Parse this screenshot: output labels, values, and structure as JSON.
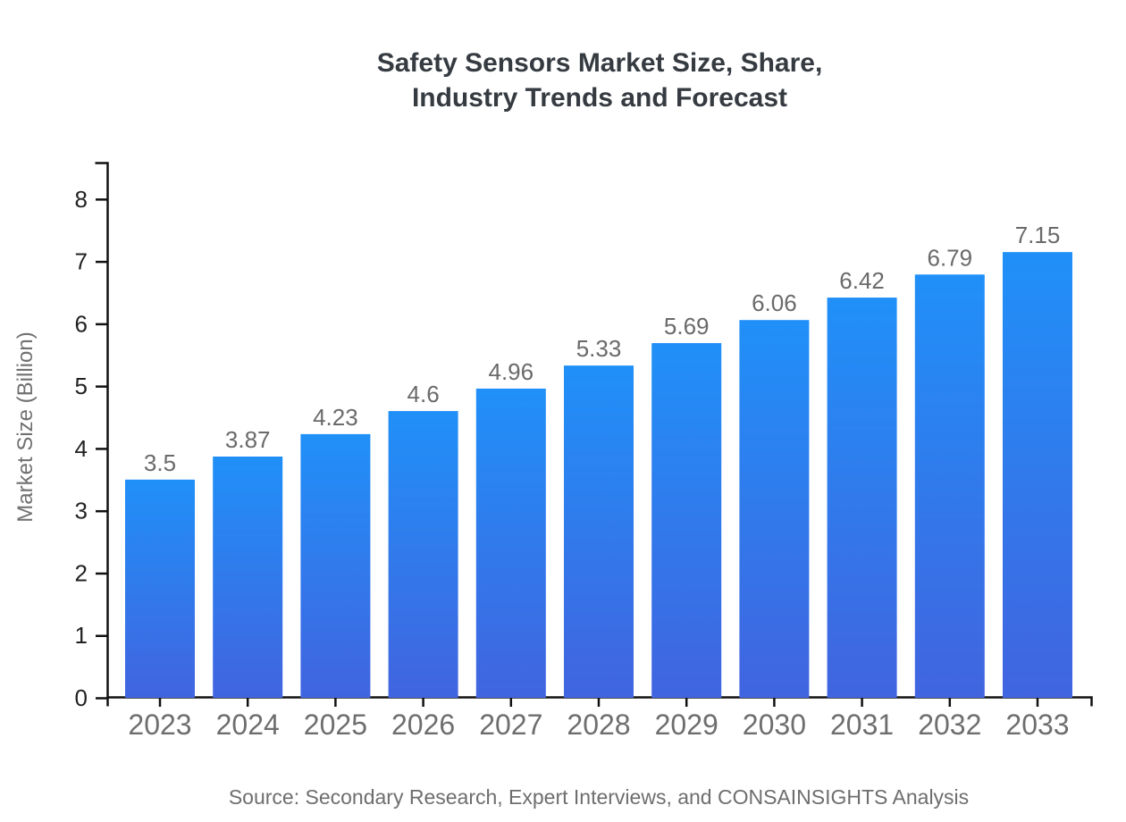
{
  "header": {
    "title_lines": [
      "Safety Sensors Market Size, Share,",
      "Industry Trends and Forecast"
    ]
  },
  "footer": {
    "source": "Source: Secondary Research, Expert Interviews, and CONSAINSIGHTS Analysis"
  },
  "chart_data": {
    "type": "bar",
    "title": "Safety Sensors Market Size, Share, Industry Trends and Forecast",
    "categories": [
      "2023",
      "2024",
      "2025",
      "2026",
      "2027",
      "2028",
      "2029",
      "2030",
      "2031",
      "2032",
      "2033"
    ],
    "values": [
      3.5,
      3.87,
      4.23,
      4.6,
      4.96,
      5.33,
      5.69,
      6.06,
      6.42,
      6.79,
      7.15
    ],
    "value_labels": [
      "3.5",
      "3.87",
      "4.23",
      "4.6",
      "4.96",
      "5.33",
      "5.69",
      "6.06",
      "6.42",
      "6.79",
      "7.15"
    ],
    "xlabel": "",
    "ylabel": "Market Size (Billion)",
    "ylim": [
      0,
      8.6
    ],
    "yticks": [
      0,
      1,
      2,
      3,
      4,
      5,
      6,
      7,
      8
    ],
    "grid": false,
    "legend": "none",
    "bar_gradient_top": "#2090F8",
    "bar_gradient_bottom": "#4164E0",
    "source_note": "Source: Secondary Research, Expert Interviews, and CONSAINSIGHTS Analysis"
  },
  "colors": {
    "title": "#353B41",
    "axis": "#111111",
    "y_tick_label": "#222222",
    "x_tick_label": "#6E6E6E",
    "value_label": "#6A6A6A",
    "axis_title": "#707070",
    "source": "#6E6E6E",
    "background": "#FFFFFF"
  }
}
